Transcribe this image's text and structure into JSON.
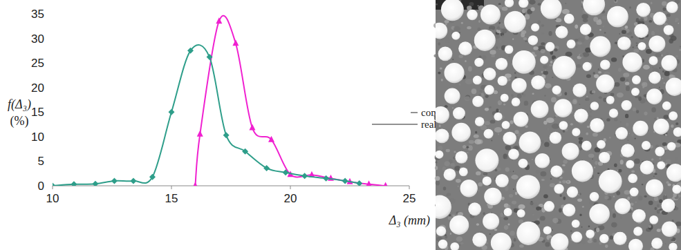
{
  "chart_data": {
    "type": "line",
    "y_label": [
      "f(Δ₃)",
      "(%)"
    ],
    "x_label": "Δ₃ (mm)",
    "xlim": [
      10,
      25
    ],
    "xticks": [
      10,
      15,
      20,
      25
    ],
    "ylim": [
      0,
      35
    ],
    "yticks": [
      0,
      5,
      10,
      15,
      20,
      25,
      30,
      35
    ],
    "grid": false,
    "series": [
      {
        "name": "compucrete",
        "color": "#f020d0",
        "marker": "triangle",
        "x": [
          16.0,
          16.2,
          17.0,
          17.7,
          18.4,
          19.2,
          20.0,
          20.9,
          21.7,
          22.5,
          23.3,
          24.0
        ],
        "values": [
          0,
          10.5,
          33.5,
          29,
          11.8,
          9.4,
          2.3,
          2.2,
          1.5,
          0.8,
          0.3,
          0
        ]
      },
      {
        "name": "realcrete",
        "color": "#2e9e8a",
        "marker": "diamond",
        "x": [
          10.0,
          10.9,
          11.8,
          12.6,
          13.4,
          14.2,
          15.0,
          15.8,
          16.6,
          17.3,
          18.1,
          19.0,
          19.8,
          20.6,
          21.5,
          22.3,
          22.9
        ],
        "values": [
          0,
          0.3,
          0.4,
          1.0,
          1.0,
          1.8,
          15,
          27.5,
          26.2,
          10.3,
          7,
          3.6,
          2.7,
          2.0,
          1.5,
          1.0,
          0.5
        ]
      }
    ]
  }
}
